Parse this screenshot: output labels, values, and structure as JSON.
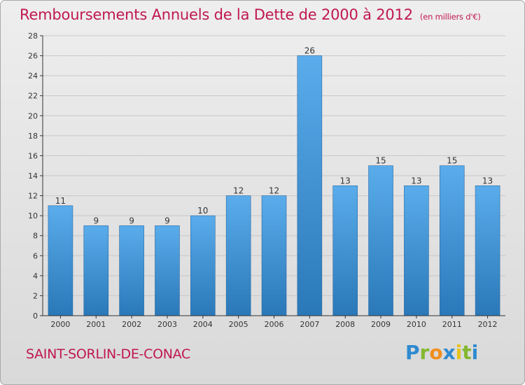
{
  "chart_data": {
    "type": "bar",
    "title": "Remboursements Annuels de la Dette de 2000 à 2012",
    "subtitle": "(en milliers d'€)",
    "categories": [
      "2000",
      "2001",
      "2002",
      "2003",
      "2004",
      "2005",
      "2006",
      "2007",
      "2008",
      "2009",
      "2010",
      "2011",
      "2012"
    ],
    "values": [
      11,
      9,
      9,
      9,
      10,
      12,
      12,
      26,
      13,
      15,
      13,
      15,
      13
    ],
    "ylim": [
      0,
      28
    ],
    "yticks": [
      0,
      2,
      4,
      6,
      8,
      10,
      12,
      14,
      16,
      18,
      20,
      22,
      24,
      26,
      28
    ],
    "xlabel": "",
    "ylabel": "",
    "grid": true
  },
  "footer": {
    "commune": "SAINT-SORLIN-DE-CONAC",
    "logo_letters": [
      "P",
      "r",
      "o",
      "x",
      "i",
      "t",
      "i"
    ]
  },
  "colors": {
    "accent": "#c0184f",
    "bar_top": "#5aaceb",
    "bar_bottom": "#2a78b8"
  }
}
